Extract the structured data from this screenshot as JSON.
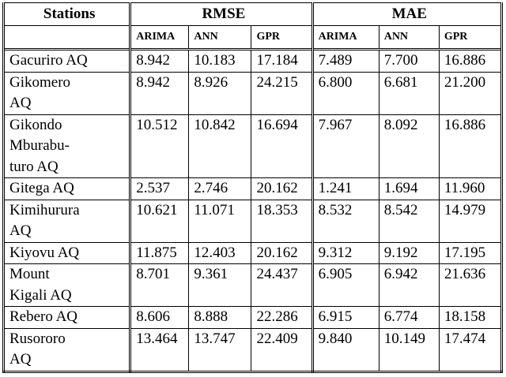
{
  "table": {
    "header": [
      "Stations",
      "RMSE",
      "MAE"
    ],
    "subheader": [
      "ARIMA",
      "ANN",
      "GPR",
      "ARIMA",
      "ANN",
      "GPR"
    ],
    "rows": [
      {
        "station": [
          "Gacuriro AQ"
        ],
        "rmse": [
          "8.942",
          "10.183",
          "17.184"
        ],
        "mae": [
          "7.489",
          "7.700",
          "16.886"
        ]
      },
      {
        "station": [
          "Gikomero",
          "AQ"
        ],
        "rmse": [
          "8.942",
          "8.926",
          "24.215"
        ],
        "mae": [
          "6.800",
          "6.681",
          "21.200"
        ]
      },
      {
        "station": [
          "Gikondo",
          "Mburabu-",
          "turo AQ"
        ],
        "rmse": [
          "10.512",
          "10.842",
          "16.694"
        ],
        "mae": [
          "7.967",
          "8.092",
          "16.886"
        ]
      },
      {
        "station": [
          "Gitega AQ"
        ],
        "rmse": [
          "2.537",
          "2.746",
          "20.162"
        ],
        "mae": [
          "1.241",
          "1.694",
          "11.960"
        ]
      },
      {
        "station": [
          "Kimihurura",
          "AQ"
        ],
        "rmse": [
          "10.621",
          "11.071",
          "18.353"
        ],
        "mae": [
          "8.532",
          "8.542",
          "14.979"
        ]
      },
      {
        "station": [
          "Kiyovu AQ"
        ],
        "rmse": [
          "11.875",
          "12.403",
          "20.162"
        ],
        "mae": [
          "9.312",
          "9.192",
          "17.195"
        ]
      },
      {
        "station": [
          "Mount",
          "Kigali AQ"
        ],
        "rmse": [
          "8.701",
          "9.361",
          "24.437"
        ],
        "mae": [
          "6.905",
          "6.942",
          "21.636"
        ]
      },
      {
        "station": [
          "Rebero AQ"
        ],
        "rmse": [
          "8.606",
          "8.888",
          "22.286"
        ],
        "mae": [
          "6.915",
          "6.774",
          "18.158"
        ]
      },
      {
        "station": [
          "Rusororo",
          "AQ"
        ],
        "rmse": [
          "13.464",
          "13.747",
          "22.409"
        ],
        "mae": [
          "9.840",
          "10.149",
          "17.474"
        ]
      }
    ]
  }
}
